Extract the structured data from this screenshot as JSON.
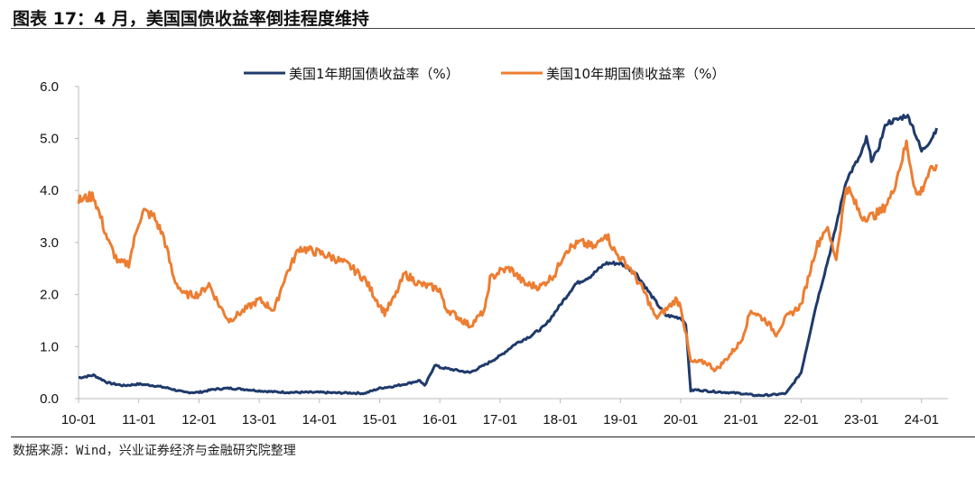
{
  "title": "图表 17：4 月，美国国债收益率倒挂程度维持",
  "source": "数据来源：Wind，兴业证券经济与金融研究院整理",
  "chart_data": {
    "type": "line",
    "title": "",
    "xlabel": "",
    "ylabel": "",
    "ylim": [
      0,
      6
    ],
    "yticks": [
      "0.0",
      "1.0",
      "2.0",
      "3.0",
      "4.0",
      "5.0",
      "6.0"
    ],
    "xticks": [
      "10-01",
      "11-01",
      "12-01",
      "13-01",
      "14-01",
      "15-01",
      "16-01",
      "17-01",
      "18-01",
      "19-01",
      "20-01",
      "21-01",
      "22-01",
      "23-01",
      "24-01"
    ],
    "legend": "top",
    "series": [
      {
        "name": "美国1年期国债收益率（%）",
        "color": "#1f3a6b",
        "points": [
          [
            "2010-01",
            0.4
          ],
          [
            "2010-04",
            0.45
          ],
          [
            "2010-07",
            0.3
          ],
          [
            "2010-10",
            0.25
          ],
          [
            "2011-01",
            0.28
          ],
          [
            "2011-04",
            0.25
          ],
          [
            "2011-07",
            0.2
          ],
          [
            "2011-10",
            0.12
          ],
          [
            "2012-01",
            0.12
          ],
          [
            "2012-04",
            0.18
          ],
          [
            "2012-07",
            0.2
          ],
          [
            "2012-10",
            0.18
          ],
          [
            "2013-01",
            0.15
          ],
          [
            "2013-04",
            0.13
          ],
          [
            "2013-07",
            0.12
          ],
          [
            "2013-10",
            0.12
          ],
          [
            "2014-01",
            0.12
          ],
          [
            "2014-04",
            0.11
          ],
          [
            "2014-07",
            0.11
          ],
          [
            "2014-10",
            0.1
          ],
          [
            "2015-01",
            0.2
          ],
          [
            "2015-04",
            0.24
          ],
          [
            "2015-07",
            0.3
          ],
          [
            "2015-09",
            0.35
          ],
          [
            "2015-10",
            0.24
          ],
          [
            "2015-12",
            0.65
          ],
          [
            "2016-01",
            0.6
          ],
          [
            "2016-04",
            0.55
          ],
          [
            "2016-07",
            0.5
          ],
          [
            "2016-10",
            0.65
          ],
          [
            "2017-01",
            0.82
          ],
          [
            "2017-04",
            1.05
          ],
          [
            "2017-07",
            1.2
          ],
          [
            "2017-10",
            1.4
          ],
          [
            "2018-01",
            1.8
          ],
          [
            "2018-04",
            2.2
          ],
          [
            "2018-07",
            2.35
          ],
          [
            "2018-10",
            2.6
          ],
          [
            "2019-01",
            2.6
          ],
          [
            "2019-04",
            2.42
          ],
          [
            "2019-07",
            2.0
          ],
          [
            "2019-10",
            1.6
          ],
          [
            "2020-01",
            1.55
          ],
          [
            "2020-02",
            1.45
          ],
          [
            "2020-03",
            0.15
          ],
          [
            "2020-04",
            0.17
          ],
          [
            "2020-07",
            0.14
          ],
          [
            "2020-10",
            0.12
          ],
          [
            "2021-01",
            0.1
          ],
          [
            "2021-04",
            0.06
          ],
          [
            "2021-07",
            0.07
          ],
          [
            "2021-10",
            0.1
          ],
          [
            "2022-01",
            0.5
          ],
          [
            "2022-04",
            1.8
          ],
          [
            "2022-07",
            2.9
          ],
          [
            "2022-10",
            4.2
          ],
          [
            "2023-01",
            4.7
          ],
          [
            "2023-02",
            5.0
          ],
          [
            "2023-03",
            4.6
          ],
          [
            "2023-04",
            4.7
          ],
          [
            "2023-06",
            5.3
          ],
          [
            "2023-08",
            5.35
          ],
          [
            "2023-10",
            5.45
          ],
          [
            "2023-11",
            5.3
          ],
          [
            "2024-01",
            4.75
          ],
          [
            "2024-03",
            5.0
          ],
          [
            "2024-04",
            5.2
          ]
        ]
      },
      {
        "name": "美国10年期国债收益率（%）",
        "color": "#ed7d31",
        "points": [
          [
            "2010-01",
            3.8
          ],
          [
            "2010-04",
            3.9
          ],
          [
            "2010-07",
            3.0
          ],
          [
            "2010-09",
            2.6
          ],
          [
            "2010-11",
            2.6
          ],
          [
            "2011-01",
            3.4
          ],
          [
            "2011-02",
            3.6
          ],
          [
            "2011-04",
            3.5
          ],
          [
            "2011-06",
            3.1
          ],
          [
            "2011-08",
            2.3
          ],
          [
            "2011-10",
            2.0
          ],
          [
            "2012-01",
            2.0
          ],
          [
            "2012-03",
            2.2
          ],
          [
            "2012-05",
            1.8
          ],
          [
            "2012-07",
            1.5
          ],
          [
            "2012-10",
            1.7
          ],
          [
            "2013-01",
            1.9
          ],
          [
            "2013-04",
            1.7
          ],
          [
            "2013-06",
            2.3
          ],
          [
            "2013-09",
            2.9
          ],
          [
            "2014-01",
            2.8
          ],
          [
            "2014-04",
            2.7
          ],
          [
            "2014-07",
            2.55
          ],
          [
            "2014-10",
            2.3
          ],
          [
            "2015-01",
            1.8
          ],
          [
            "2015-02",
            1.65
          ],
          [
            "2015-04",
            1.95
          ],
          [
            "2015-06",
            2.4
          ],
          [
            "2015-09",
            2.2
          ],
          [
            "2016-01",
            2.1
          ],
          [
            "2016-02",
            1.75
          ],
          [
            "2016-07",
            1.4
          ],
          [
            "2016-10",
            1.7
          ],
          [
            "2016-11",
            2.3
          ],
          [
            "2017-01",
            2.45
          ],
          [
            "2017-03",
            2.5
          ],
          [
            "2017-06",
            2.2
          ],
          [
            "2017-09",
            2.15
          ],
          [
            "2017-12",
            2.4
          ],
          [
            "2018-02",
            2.85
          ],
          [
            "2018-05",
            3.0
          ],
          [
            "2018-08",
            2.9
          ],
          [
            "2018-10",
            3.2
          ],
          [
            "2018-12",
            2.8
          ],
          [
            "2019-01",
            2.7
          ],
          [
            "2019-03",
            2.5
          ],
          [
            "2019-06",
            2.0
          ],
          [
            "2019-08",
            1.55
          ],
          [
            "2019-10",
            1.7
          ],
          [
            "2019-12",
            1.9
          ],
          [
            "2020-01",
            1.8
          ],
          [
            "2020-03",
            0.7
          ],
          [
            "2020-06",
            0.7
          ],
          [
            "2020-08",
            0.55
          ],
          [
            "2020-10",
            0.75
          ],
          [
            "2021-01",
            1.1
          ],
          [
            "2021-03",
            1.7
          ],
          [
            "2021-06",
            1.5
          ],
          [
            "2021-08",
            1.25
          ],
          [
            "2021-10",
            1.55
          ],
          [
            "2022-01",
            1.8
          ],
          [
            "2022-04",
            2.9
          ],
          [
            "2022-06",
            3.3
          ],
          [
            "2022-08",
            2.7
          ],
          [
            "2022-10",
            4.1
          ],
          [
            "2023-01",
            3.5
          ],
          [
            "2023-03",
            3.5
          ],
          [
            "2023-05",
            3.6
          ],
          [
            "2023-07",
            3.9
          ],
          [
            "2023-10",
            4.9
          ],
          [
            "2023-12",
            3.9
          ],
          [
            "2024-01",
            4.0
          ],
          [
            "2024-02",
            4.25
          ],
          [
            "2024-04",
            4.5
          ]
        ]
      }
    ]
  }
}
